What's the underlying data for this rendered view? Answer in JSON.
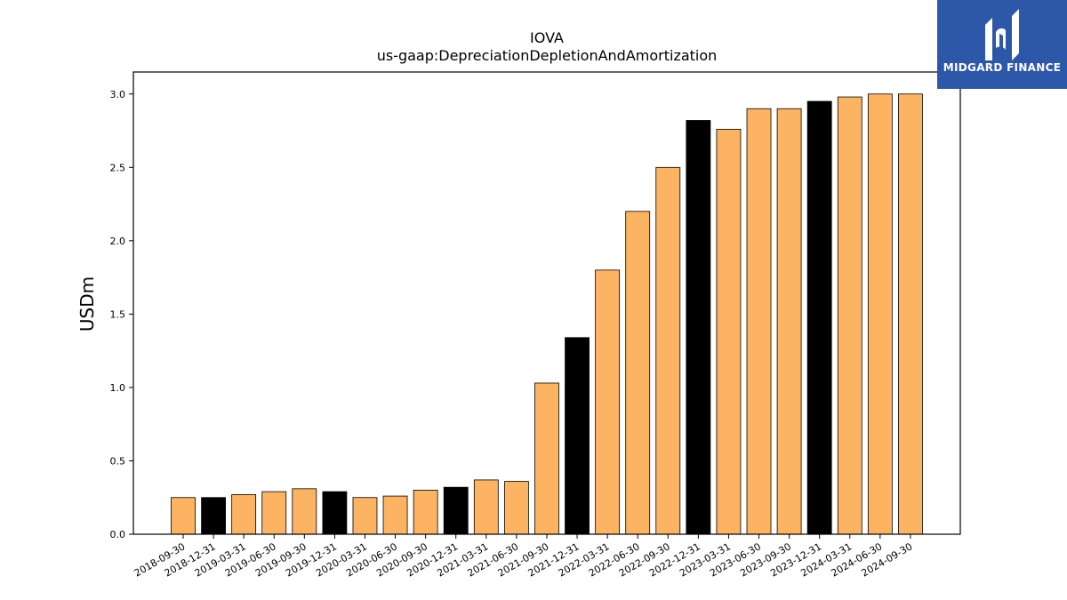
{
  "chart_data": {
    "type": "bar",
    "title": "IOVA",
    "subtitle": "us-gaap:DepreciationDepletionAndAmortization",
    "ylabel": "USDm",
    "ylim": [
      0,
      3.15
    ],
    "yticks": [
      0.0,
      0.5,
      1.0,
      1.5,
      2.0,
      2.5,
      3.0
    ],
    "ytick_labels": [
      "0.0",
      "0.5",
      "1.0",
      "1.5",
      "2.0",
      "2.5",
      "3.0"
    ],
    "grid": false,
    "categories": [
      "2018-09-30",
      "2018-12-31",
      "2019-03-31",
      "2019-06-30",
      "2019-09-30",
      "2019-12-31",
      "2020-03-31",
      "2020-06-30",
      "2020-09-30",
      "2020-12-31",
      "2021-03-31",
      "2021-06-30",
      "2021-09-30",
      "2021-12-31",
      "2022-03-31",
      "2022-06-30",
      "2022-09-30",
      "2022-12-31",
      "2023-03-31",
      "2023-06-30",
      "2023-09-30",
      "2023-12-31",
      "2024-03-31",
      "2024-06-30",
      "2024-09-30"
    ],
    "values": [
      0.25,
      0.25,
      0.27,
      0.29,
      0.31,
      0.29,
      0.25,
      0.26,
      0.3,
      0.32,
      0.37,
      0.36,
      1.03,
      1.34,
      1.8,
      2.2,
      2.5,
      2.82,
      2.76,
      2.9,
      2.9,
      2.95,
      2.98,
      3.0,
      3.0
    ],
    "bar_colors": [
      "#fdb462",
      "#000000",
      "#fdb462",
      "#fdb462",
      "#fdb462",
      "#000000",
      "#fdb462",
      "#fdb462",
      "#fdb462",
      "#000000",
      "#fdb462",
      "#fdb462",
      "#fdb462",
      "#000000",
      "#fdb462",
      "#fdb462",
      "#fdb462",
      "#000000",
      "#fdb462",
      "#fdb462",
      "#fdb462",
      "#000000",
      "#fdb462",
      "#fdb462",
      "#fdb462"
    ]
  },
  "logo": {
    "text": "MIDGARD FINANCE",
    "icon": "midgard-logo-icon",
    "background": "#2d57a8"
  }
}
